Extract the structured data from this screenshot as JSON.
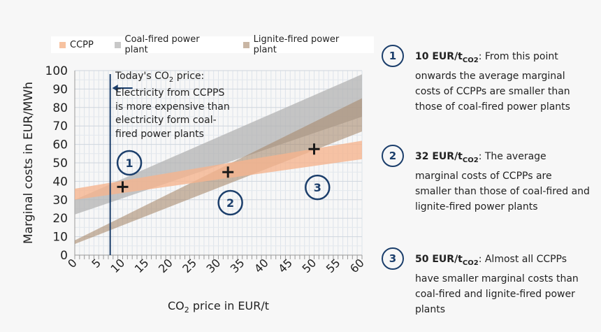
{
  "chart_data": {
    "type": "area",
    "title": "",
    "xlabel": "CO2 price in EUR/t",
    "xlabel_main": "CO",
    "xlabel_sub": "2",
    "xlabel_rest": " price in EUR/t",
    "ylabel": "Marginal costs in EUR/MWh",
    "xlim": [
      0,
      60
    ],
    "ylim": [
      0,
      100
    ],
    "xticks": [
      0,
      5,
      10,
      15,
      20,
      25,
      30,
      35,
      40,
      45,
      50,
      55,
      60
    ],
    "yticks": [
      0,
      10,
      20,
      30,
      40,
      50,
      60,
      70,
      80,
      90,
      100
    ],
    "legend_position": "top",
    "series": [
      {
        "name": "CCPP",
        "color": "#f5b48e",
        "opacity": 0.8,
        "x": [
          0,
          60
        ],
        "lower": [
          30,
          52
        ],
        "upper": [
          36,
          62
        ]
      },
      {
        "name": "Coal-fired power plant",
        "color": "#b3b3b3",
        "opacity": 0.75,
        "x": [
          0,
          60
        ],
        "lower": [
          22,
          75
        ],
        "upper": [
          30,
          98
        ]
      },
      {
        "name": "Lignite-fired power plant",
        "color": "#a88a6e",
        "opacity": 0.6,
        "x": [
          0,
          60
        ],
        "lower": [
          6,
          67
        ],
        "upper": [
          8,
          85
        ]
      }
    ],
    "todays_price_line": {
      "x": 7.4,
      "color": "#1b3e6b"
    },
    "markers": [
      {
        "x": 10,
        "y": 37
      },
      {
        "x": 32,
        "y": 45
      },
      {
        "x": 50,
        "y": 57.5
      }
    ],
    "circle_labels": [
      {
        "label": "1",
        "x": 11.4,
        "y": 50
      },
      {
        "label": "2",
        "x": 32.5,
        "y": 28.4
      },
      {
        "label": "3",
        "x": 50.7,
        "y": 36.7
      }
    ]
  },
  "annotation": {
    "line1_pre": "Today's CO",
    "line1_sub": "2",
    "line1_post": " price:",
    "line2": "Electricity from CCPPS",
    "line3": "is more expensive than",
    "line4": "electricity form coal-",
    "line5": "fired power plants"
  },
  "side_notes": [
    {
      "num": "1",
      "bold": "10 EUR/t",
      "sub": "CO2",
      "text": ": From this point onwards the average marginal costs of CCPPs are smaller than those of coal-fired power plants"
    },
    {
      "num": "2",
      "bold": "32 EUR/t",
      "sub": "CO2",
      "text": ": The average marginal costs of CCPPs are smaller than those of coal-fired and lignite-fired power plants"
    },
    {
      "num": "3",
      "bold": "50 EUR/t",
      "sub": "CO2",
      "text": ": Almost all CCPPs have smaller marginal costs than coal-fired and lignite-fired power plants"
    }
  ]
}
